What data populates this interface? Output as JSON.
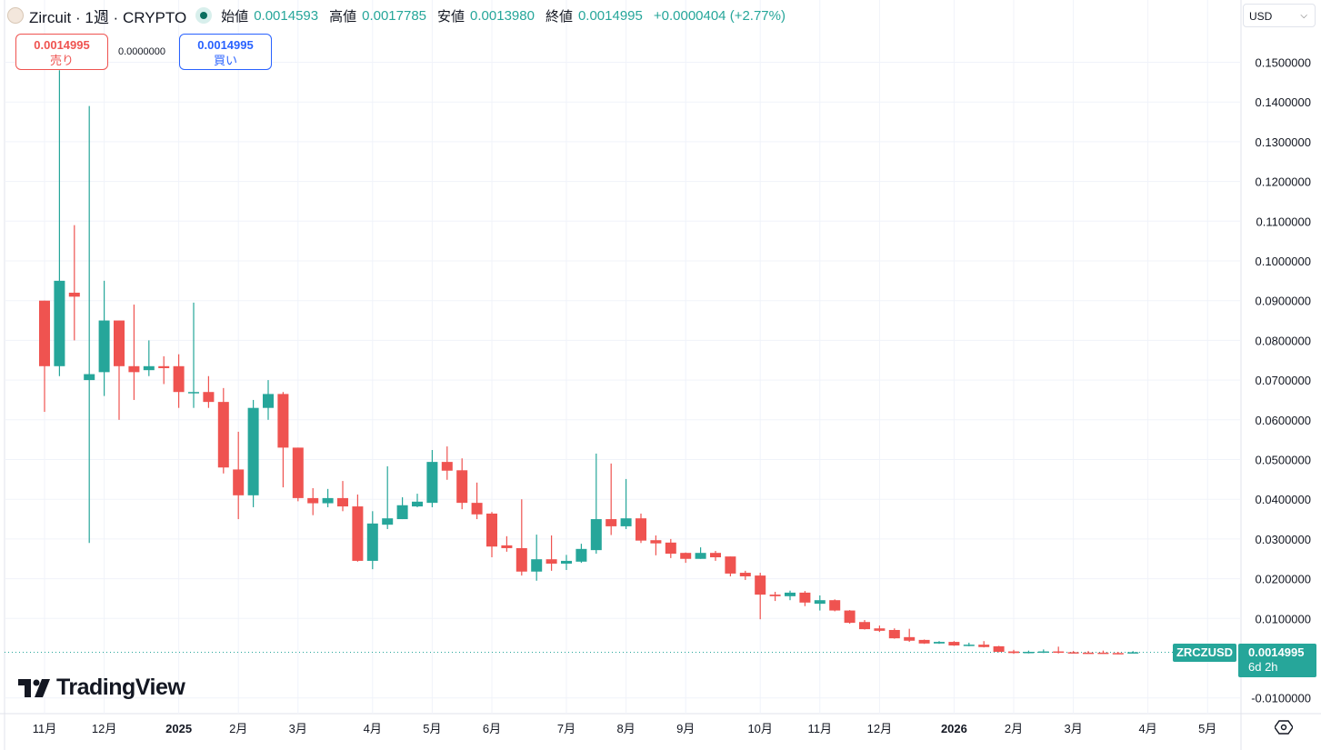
{
  "header": {
    "title": "Zircuit · 1週 · CRYPTO",
    "open_label": "始値",
    "open": "0.0014593",
    "high_label": "高値",
    "high": "0.0017785",
    "low_label": "安値",
    "low": "0.0013980",
    "close_label": "終値",
    "close": "0.0014995",
    "change": "+0.0000404 (+2.77%)"
  },
  "trade": {
    "sell_price": "0.0014995",
    "sell_label": "売り",
    "spread": "0.0000000",
    "buy_price": "0.0014995",
    "buy_label": "買い"
  },
  "currency_selector": {
    "value": "USD"
  },
  "branding": {
    "logo_text": "TradingView"
  },
  "last_price": {
    "symbol": "ZRCZUSD",
    "price": "0.0014995",
    "countdown": "6d 2h"
  },
  "colors": {
    "up": "#26a69a",
    "down": "#ef5350",
    "sell": "#ef5350",
    "buy": "#2962ff"
  },
  "chart_data": {
    "type": "candlestick",
    "interval": "1週",
    "y_tick_labels": [
      "0.1500000",
      "0.1400000",
      "0.1300000",
      "0.1200000",
      "0.1100000",
      "0.1000000",
      "0.0900000",
      "0.0800000",
      "0.0700000",
      "0.0600000",
      "0.0500000",
      "0.0400000",
      "0.0300000",
      "0.0200000",
      "0.0100000",
      "-0.0100000"
    ],
    "ylim": [
      -0.013,
      0.155
    ],
    "x_tick_labels": [
      "11月",
      "12月",
      "2025",
      "2月",
      "3月",
      "4月",
      "5月",
      "6月",
      "7月",
      "8月",
      "9月",
      "10月",
      "11月",
      "12月",
      "2026",
      "2月",
      "3月",
      "4月",
      "5月"
    ],
    "grid": true,
    "ohlc": [
      [
        0.09,
        0.09,
        0.062,
        0.0735
      ],
      [
        0.0735,
        0.148,
        0.071,
        0.095
      ],
      [
        0.092,
        0.109,
        0.08,
        0.091
      ],
      [
        0.07,
        0.139,
        0.029,
        0.0715
      ],
      [
        0.072,
        0.095,
        0.066,
        0.085
      ],
      [
        0.085,
        0.085,
        0.06,
        0.0735
      ],
      [
        0.0735,
        0.089,
        0.065,
        0.072
      ],
      [
        0.0725,
        0.08,
        0.071,
        0.0735
      ],
      [
        0.0735,
        0.076,
        0.069,
        0.073
      ],
      [
        0.0735,
        0.0765,
        0.063,
        0.067
      ],
      [
        0.0668,
        0.0895,
        0.063,
        0.067
      ],
      [
        0.067,
        0.071,
        0.063,
        0.0645
      ],
      [
        0.0645,
        0.068,
        0.0465,
        0.048
      ],
      [
        0.0475,
        0.057,
        0.035,
        0.041
      ],
      [
        0.041,
        0.065,
        0.038,
        0.063
      ],
      [
        0.063,
        0.07,
        0.06,
        0.0665
      ],
      [
        0.0665,
        0.067,
        0.043,
        0.053
      ],
      [
        0.053,
        0.053,
        0.0395,
        0.0403
      ],
      [
        0.0403,
        0.0428,
        0.036,
        0.039
      ],
      [
        0.039,
        0.0426,
        0.038,
        0.0403
      ],
      [
        0.0403,
        0.0446,
        0.037,
        0.0382
      ],
      [
        0.0382,
        0.0412,
        0.0243,
        0.0245
      ],
      [
        0.0245,
        0.037,
        0.0224,
        0.0339
      ],
      [
        0.0336,
        0.0483,
        0.0325,
        0.0352
      ],
      [
        0.035,
        0.0405,
        0.035,
        0.0385
      ],
      [
        0.0382,
        0.0414,
        0.038,
        0.0394
      ],
      [
        0.0391,
        0.0524,
        0.038,
        0.0494
      ],
      [
        0.0494,
        0.0533,
        0.0449,
        0.0472
      ],
      [
        0.0473,
        0.0503,
        0.0375,
        0.0391
      ],
      [
        0.0391,
        0.0442,
        0.035,
        0.0362
      ],
      [
        0.0364,
        0.0368,
        0.0254,
        0.0281
      ],
      [
        0.0284,
        0.0307,
        0.0268,
        0.0277
      ],
      [
        0.0277,
        0.04,
        0.0208,
        0.0218
      ],
      [
        0.0218,
        0.0311,
        0.0195,
        0.0249
      ],
      [
        0.0249,
        0.0309,
        0.022,
        0.0238
      ],
      [
        0.0238,
        0.026,
        0.0222,
        0.0245
      ],
      [
        0.0243,
        0.0288,
        0.024,
        0.0275
      ],
      [
        0.0272,
        0.0515,
        0.0263,
        0.035
      ],
      [
        0.035,
        0.049,
        0.031,
        0.0332
      ],
      [
        0.0332,
        0.0451,
        0.0325,
        0.0352
      ],
      [
        0.0352,
        0.0364,
        0.029,
        0.0296
      ],
      [
        0.0297,
        0.0309,
        0.0259,
        0.0289
      ],
      [
        0.0291,
        0.03,
        0.0252,
        0.0263
      ],
      [
        0.0265,
        0.0266,
        0.024,
        0.025
      ],
      [
        0.025,
        0.0279,
        0.025,
        0.0265
      ],
      [
        0.0265,
        0.027,
        0.0245,
        0.0254
      ],
      [
        0.0256,
        0.0256,
        0.0206,
        0.0213
      ],
      [
        0.0215,
        0.022,
        0.0197,
        0.0206
      ],
      [
        0.0208,
        0.0215,
        0.0098,
        0.016
      ],
      [
        0.016,
        0.0167,
        0.0144,
        0.0156
      ],
      [
        0.0156,
        0.017,
        0.0146,
        0.0165
      ],
      [
        0.0165,
        0.0169,
        0.0131,
        0.014
      ],
      [
        0.0137,
        0.0158,
        0.012,
        0.0146
      ],
      [
        0.0146,
        0.0148,
        0.0118,
        0.012
      ],
      [
        0.012,
        0.0121,
        0.0087,
        0.0089
      ],
      [
        0.0091,
        0.0096,
        0.0072,
        0.0073
      ],
      [
        0.0075,
        0.0082,
        0.0066,
        0.0069
      ],
      [
        0.0071,
        0.0075,
        0.0049,
        0.005
      ],
      [
        0.0053,
        0.0074,
        0.0041,
        0.0044
      ],
      [
        0.0046,
        0.0047,
        0.0036,
        0.0037
      ],
      [
        0.0037,
        0.0043,
        0.0036,
        0.0041
      ],
      [
        0.0041,
        0.0043,
        0.0031,
        0.0032
      ],
      [
        0.0032,
        0.0039,
        0.003,
        0.0034
      ],
      [
        0.0034,
        0.0043,
        0.0027,
        0.0028
      ],
      [
        0.003,
        0.0031,
        0.0015,
        0.0016
      ],
      [
        0.0017,
        0.0021,
        0.0011,
        0.0013
      ],
      [
        0.0013,
        0.0019,
        0.0012,
        0.0016
      ],
      [
        0.0015,
        0.0022,
        0.0013,
        0.0017
      ],
      [
        0.0017,
        0.0029,
        0.0012,
        0.0014
      ],
      [
        0.0015,
        0.0018,
        0.0012,
        0.0013
      ],
      [
        0.0014,
        0.0018,
        0.0011,
        0.0012
      ],
      [
        0.0014,
        0.0019,
        0.0011,
        0.0012
      ],
      [
        0.0013,
        0.0016,
        0.001,
        0.0011
      ],
      [
        0.0014593,
        0.0017785,
        0.001398,
        0.0014995
      ]
    ],
    "last_close": 0.0014995
  }
}
